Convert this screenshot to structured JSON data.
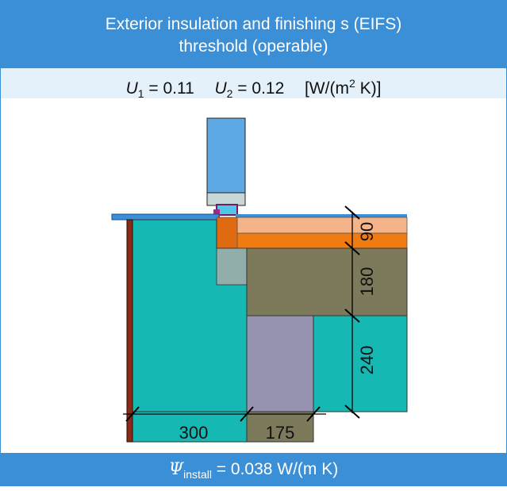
{
  "title": {
    "line1": "Exterior insulation and finishing s (EIFS)",
    "line2": "threshold (operable)"
  },
  "u_values": {
    "u1_symbol": "U",
    "u1_sub": "1",
    "u1_value": "= 0.11",
    "u2_symbol": "U",
    "u2_sub": "2",
    "u2_value": "= 0.12",
    "unit_prefix": "[W/(m",
    "unit_sup": "2",
    "unit_suffix": " K)]"
  },
  "dimensions": {
    "vertical": [
      "90",
      "180",
      "240"
    ],
    "horizontal": [
      "300",
      "175"
    ]
  },
  "footer": {
    "psi_symbol": "Ψ",
    "psi_sub": "install",
    "psi_value": " = 0.038 W/(m K)"
  },
  "colors": {
    "header_blue": "#3a8fd6",
    "u_bar_bg": "#e4f1fb",
    "concrete_teal": "#15b8b2",
    "insulation_olive": "#7d7a5b",
    "insulation_purple": "#9593b0",
    "screed_peach": "#f5b38a",
    "screed_orange": "#f07b10",
    "gravel_grey": "#92aeaa",
    "frame_blue": "#5ea8e3",
    "cladding_red": "#8b2a18"
  }
}
